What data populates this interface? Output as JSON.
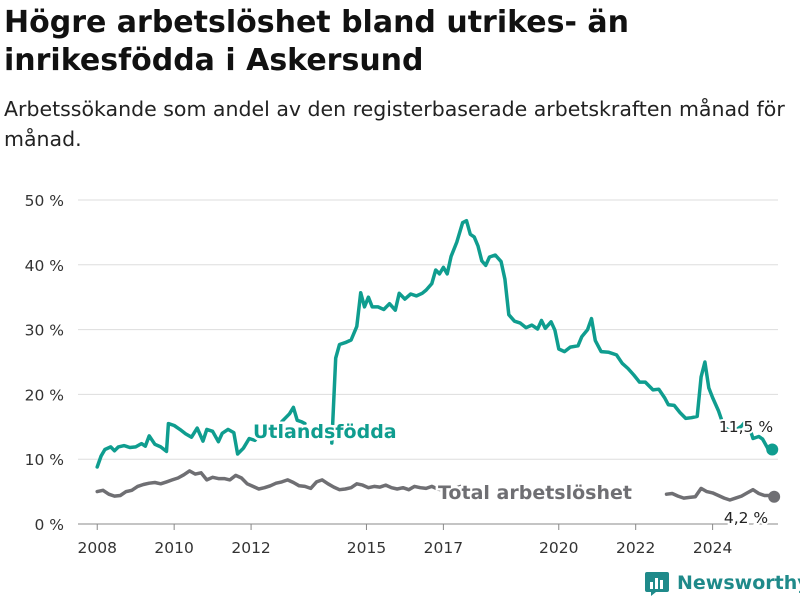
{
  "title": "Högre arbetslöshet bland utrikes- än inrikesfödda i Askersund",
  "subtitle": "Arbetssökande som andel av den registerbaserade arbetskraften månad för månad.",
  "brand": {
    "name": "Newsworthy",
    "icon": "newsworthy-logo-icon"
  },
  "colors": {
    "foreign_born": "#0f9d8f",
    "total": "#6f6f73",
    "grid": "#dddddd",
    "axis_text": "#333333"
  },
  "chart_data": {
    "type": "line",
    "title": "Högre arbetslöshet bland utrikes- än inrikesfödda i Askersund",
    "xlabel": "",
    "ylabel": "",
    "ylim": [
      0,
      50
    ],
    "xlim": [
      2007.5,
      2025.7
    ],
    "y_ticks": [
      "0 %",
      "10 %",
      "20 %",
      "30 %",
      "40 %",
      "50 %"
    ],
    "x_ticks": [
      "2008",
      "2010",
      "2012",
      "2015",
      "2017",
      "2020",
      "2022",
      "2024"
    ],
    "x_tick_values": [
      2008,
      2010,
      2012,
      2015,
      2017,
      2020,
      2022,
      2024
    ],
    "grid": "horizontal",
    "series": [
      {
        "name": "Utlandsfödda",
        "end_label": "11,5 %",
        "points": [
          [
            2008.0,
            8.8
          ],
          [
            2008.1,
            10.5
          ],
          [
            2008.2,
            11.5
          ],
          [
            2008.35,
            11.9
          ],
          [
            2008.45,
            11.3
          ],
          [
            2008.55,
            11.9
          ],
          [
            2008.7,
            12.1
          ],
          [
            2008.85,
            11.8
          ],
          [
            2009.0,
            11.9
          ],
          [
            2009.15,
            12.4
          ],
          [
            2009.25,
            12.0
          ],
          [
            2009.35,
            13.6
          ],
          [
            2009.5,
            12.3
          ],
          [
            2009.65,
            11.9
          ],
          [
            2009.8,
            11.2
          ],
          [
            2009.85,
            15.5
          ],
          [
            2010.0,
            15.2
          ],
          [
            2010.15,
            14.6
          ],
          [
            2010.3,
            13.9
          ],
          [
            2010.45,
            13.4
          ],
          [
            2010.6,
            14.8
          ],
          [
            2010.75,
            12.8
          ],
          [
            2010.85,
            14.6
          ],
          [
            2011.0,
            14.3
          ],
          [
            2011.15,
            12.7
          ],
          [
            2011.25,
            14.0
          ],
          [
            2011.4,
            14.6
          ],
          [
            2011.55,
            14.1
          ],
          [
            2011.65,
            10.8
          ],
          [
            2011.8,
            11.7
          ],
          [
            2011.95,
            13.2
          ],
          [
            2012.1,
            12.9
          ],
          [
            2012.25,
            14.0
          ],
          [
            2012.4,
            14.4
          ],
          [
            2012.55,
            15.0
          ],
          [
            2012.7,
            14.6
          ],
          [
            2012.8,
            15.8
          ],
          [
            2012.9,
            16.4
          ],
          [
            2013.0,
            17.0
          ],
          [
            2013.1,
            18.0
          ],
          [
            2013.2,
            16.0
          ],
          [
            2013.3,
            15.8
          ],
          [
            2013.4,
            15.5
          ]
        ],
        "points_b": [
          [
            2014.1,
            12.5
          ],
          [
            2014.2,
            25.6
          ],
          [
            2014.3,
            27.7
          ],
          [
            2014.45,
            28.0
          ],
          [
            2014.6,
            28.4
          ],
          [
            2014.75,
            30.5
          ],
          [
            2014.85,
            35.7
          ],
          [
            2014.95,
            33.5
          ],
          [
            2015.05,
            35.0
          ],
          [
            2015.15,
            33.5
          ],
          [
            2015.3,
            33.5
          ],
          [
            2015.45,
            33.1
          ],
          [
            2015.6,
            34.0
          ],
          [
            2015.75,
            33.0
          ],
          [
            2015.85,
            35.6
          ],
          [
            2016.0,
            34.7
          ],
          [
            2016.15,
            35.5
          ],
          [
            2016.3,
            35.2
          ],
          [
            2016.45,
            35.6
          ],
          [
            2016.55,
            36.1
          ],
          [
            2016.7,
            37.1
          ],
          [
            2016.8,
            39.2
          ],
          [
            2016.9,
            38.6
          ],
          [
            2017.0,
            39.6
          ],
          [
            2017.1,
            38.6
          ],
          [
            2017.2,
            41.3
          ],
          [
            2017.35,
            43.5
          ],
          [
            2017.5,
            46.5
          ],
          [
            2017.6,
            46.8
          ],
          [
            2017.7,
            44.7
          ],
          [
            2017.8,
            44.3
          ],
          [
            2017.9,
            42.9
          ],
          [
            2018.0,
            40.6
          ],
          [
            2018.1,
            39.9
          ],
          [
            2018.2,
            41.2
          ],
          [
            2018.35,
            41.5
          ],
          [
            2018.5,
            40.5
          ],
          [
            2018.6,
            37.8
          ],
          [
            2018.7,
            32.3
          ],
          [
            2018.85,
            31.3
          ],
          [
            2019.0,
            31.0
          ],
          [
            2019.15,
            30.3
          ],
          [
            2019.3,
            30.7
          ],
          [
            2019.45,
            30.1
          ],
          [
            2019.55,
            31.4
          ],
          [
            2019.65,
            30.2
          ],
          [
            2019.8,
            31.2
          ],
          [
            2019.9,
            29.9
          ],
          [
            2020.0,
            27.0
          ],
          [
            2020.15,
            26.6
          ],
          [
            2020.3,
            27.3
          ],
          [
            2020.5,
            27.5
          ],
          [
            2020.6,
            28.9
          ],
          [
            2020.75,
            30.0
          ],
          [
            2020.85,
            31.7
          ],
          [
            2020.95,
            28.3
          ],
          [
            2021.1,
            26.6
          ],
          [
            2021.3,
            26.5
          ],
          [
            2021.5,
            26.1
          ],
          [
            2021.65,
            24.8
          ],
          [
            2021.8,
            24.0
          ],
          [
            2021.95,
            23.0
          ],
          [
            2022.1,
            21.9
          ],
          [
            2022.25,
            21.9
          ],
          [
            2022.45,
            20.7
          ],
          [
            2022.6,
            20.8
          ],
          [
            2022.75,
            19.5
          ],
          [
            2022.85,
            18.4
          ],
          [
            2023.0,
            18.3
          ],
          [
            2023.15,
            17.2
          ],
          [
            2023.3,
            16.3
          ],
          [
            2023.45,
            16.4
          ],
          [
            2023.6,
            16.6
          ],
          [
            2023.7,
            22.7
          ],
          [
            2023.8,
            25.0
          ],
          [
            2023.9,
            21.0
          ],
          [
            2024.0,
            19.5
          ],
          [
            2024.15,
            17.5
          ],
          [
            2024.3,
            14.9
          ],
          [
            2024.45,
            14.4
          ],
          [
            2024.6,
            14.5
          ],
          [
            2024.75,
            15.1
          ],
          [
            2024.85,
            15.8
          ],
          [
            2024.95,
            15.0
          ],
          [
            2025.05,
            13.2
          ],
          [
            2025.2,
            13.5
          ],
          [
            2025.3,
            13.1
          ],
          [
            2025.45,
            11.5
          ],
          [
            2025.55,
            11.5
          ]
        ]
      },
      {
        "name": "Total arbetslöshet",
        "end_label": "4,2 %",
        "points": [
          [
            2008.0,
            5.0
          ],
          [
            2008.15,
            5.2
          ],
          [
            2008.3,
            4.6
          ],
          [
            2008.45,
            4.3
          ],
          [
            2008.6,
            4.4
          ],
          [
            2008.75,
            5.0
          ],
          [
            2008.9,
            5.2
          ],
          [
            2009.05,
            5.8
          ],
          [
            2009.2,
            6.1
          ],
          [
            2009.35,
            6.3
          ],
          [
            2009.5,
            6.4
          ],
          [
            2009.65,
            6.2
          ],
          [
            2009.8,
            6.5
          ],
          [
            2009.95,
            6.8
          ],
          [
            2010.1,
            7.1
          ],
          [
            2010.25,
            7.6
          ],
          [
            2010.4,
            8.2
          ],
          [
            2010.55,
            7.7
          ],
          [
            2010.7,
            7.9
          ],
          [
            2010.85,
            6.8
          ],
          [
            2011.0,
            7.2
          ],
          [
            2011.15,
            7.0
          ],
          [
            2011.3,
            7.0
          ],
          [
            2011.45,
            6.8
          ],
          [
            2011.6,
            7.5
          ],
          [
            2011.75,
            7.1
          ],
          [
            2011.9,
            6.2
          ],
          [
            2012.05,
            5.8
          ],
          [
            2012.2,
            5.4
          ],
          [
            2012.35,
            5.6
          ],
          [
            2012.5,
            5.9
          ],
          [
            2012.65,
            6.3
          ],
          [
            2012.8,
            6.5
          ],
          [
            2012.95,
            6.8
          ],
          [
            2013.1,
            6.4
          ],
          [
            2013.25,
            5.9
          ],
          [
            2013.4,
            5.8
          ],
          [
            2013.55,
            5.5
          ],
          [
            2013.7,
            6.5
          ],
          [
            2013.85,
            6.8
          ],
          [
            2014.0,
            6.2
          ],
          [
            2014.15,
            5.7
          ],
          [
            2014.3,
            5.3
          ],
          [
            2014.45,
            5.4
          ],
          [
            2014.6,
            5.6
          ],
          [
            2014.75,
            6.2
          ],
          [
            2014.9,
            6.0
          ],
          [
            2015.05,
            5.6
          ],
          [
            2015.2,
            5.8
          ],
          [
            2015.35,
            5.7
          ],
          [
            2015.5,
            6.0
          ],
          [
            2015.65,
            5.6
          ],
          [
            2015.8,
            5.4
          ],
          [
            2015.95,
            5.6
          ],
          [
            2016.1,
            5.3
          ],
          [
            2016.25,
            5.8
          ],
          [
            2016.4,
            5.6
          ],
          [
            2016.55,
            5.5
          ],
          [
            2016.7,
            5.8
          ],
          [
            2016.85,
            5.4
          ],
          [
            2017.0,
            5.2
          ],
          [
            2017.15,
            5.3
          ],
          [
            2017.3,
            5.5
          ],
          [
            2017.45,
            5.8
          ]
        ],
        "points_b": [
          [
            2022.8,
            4.6
          ],
          [
            2022.95,
            4.7
          ],
          [
            2023.1,
            4.3
          ],
          [
            2023.25,
            4.0
          ],
          [
            2023.4,
            4.1
          ],
          [
            2023.55,
            4.2
          ],
          [
            2023.7,
            5.5
          ],
          [
            2023.85,
            5.0
          ],
          [
            2024.0,
            4.8
          ],
          [
            2024.15,
            4.4
          ],
          [
            2024.3,
            4.0
          ],
          [
            2024.45,
            3.7
          ],
          [
            2024.6,
            4.0
          ],
          [
            2024.75,
            4.3
          ],
          [
            2024.9,
            4.8
          ],
          [
            2025.05,
            5.3
          ],
          [
            2025.2,
            4.7
          ],
          [
            2025.35,
            4.4
          ],
          [
            2025.5,
            4.4
          ],
          [
            2025.6,
            4.2
          ]
        ]
      }
    ],
    "annotations": [
      "Utlandsfödda",
      "Total arbetslöshet",
      "11,5 %",
      "4,2 %"
    ]
  }
}
